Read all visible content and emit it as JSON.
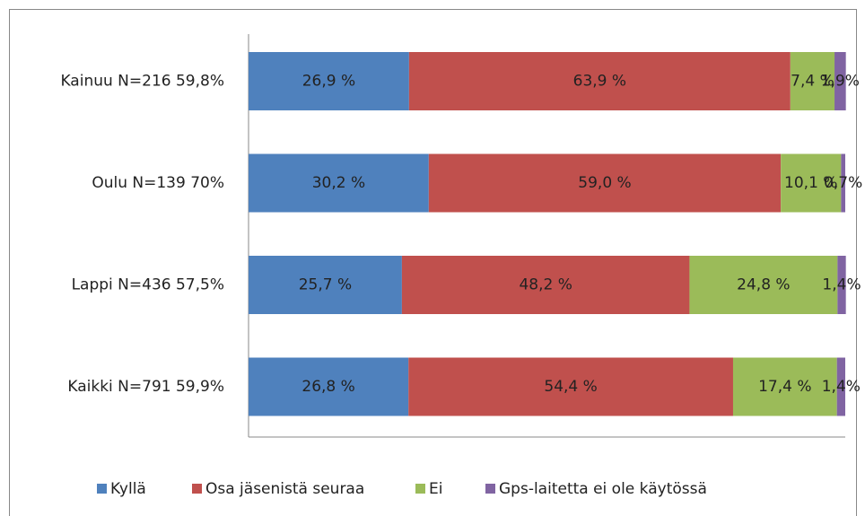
{
  "chart_data": {
    "type": "stacked_bar_horizontal",
    "categories": [
      "Kainuu N=216 59,8%",
      "Oulu N=139 70%",
      "Lappi N=436 57,5%",
      "Kaikki N=791 59,9%"
    ],
    "series": [
      {
        "name": "Kyllä",
        "color": "#4f81bd",
        "values": [
          26.9,
          30.2,
          25.7,
          26.8
        ],
        "value_labels": [
          "26,9 %",
          "30,2 %",
          "25,7 %",
          "26,8 %"
        ]
      },
      {
        "name": "Osa jäsenistä seuraa",
        "color": "#c0504d",
        "values": [
          63.9,
          59.0,
          48.2,
          54.4
        ],
        "value_labels": [
          "63,9 %",
          "59,0 %",
          "48,2 %",
          "54,4 %"
        ]
      },
      {
        "name": "Ei",
        "color": "#9bbb59",
        "values": [
          7.4,
          10.1,
          24.8,
          17.4
        ],
        "value_labels": [
          "7,4 %",
          "10,1 %",
          "24,8 %",
          "17,4 %"
        ]
      },
      {
        "name": "Gps-laitetta ei ole käytössä",
        "color": "#8064a2",
        "values": [
          1.9,
          0.7,
          1.4,
          1.4
        ],
        "value_labels": [
          "1,9%",
          "0,7%",
          "1,4%",
          "1,4%"
        ]
      }
    ],
    "xlim": [
      0,
      100
    ],
    "legend": "bottom"
  }
}
